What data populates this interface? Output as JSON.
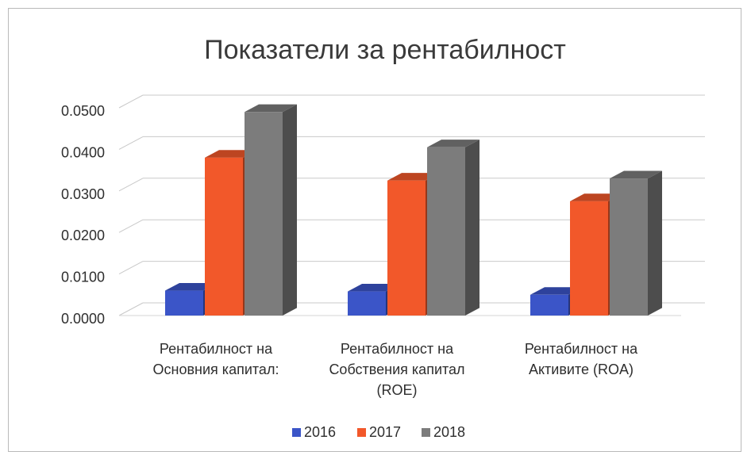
{
  "chart_data": {
    "type": "bar",
    "title": "Показатели за рентабилност",
    "xlabel": "",
    "ylabel": "",
    "ylim": [
      0,
      0.05
    ],
    "y_ticks": [
      "0.0000",
      "0.0100",
      "0.0200",
      "0.0300",
      "0.0400",
      "0.0500"
    ],
    "grid": true,
    "legend_position": "bottom",
    "categories": [
      [
        "Рентабилност на",
        "Основния капитал:"
      ],
      [
        "Рентабилност на",
        "Собствения капитал",
        "(ROE)"
      ],
      [
        "Рентабилност на",
        "Активите (ROA)"
      ]
    ],
    "series": [
      {
        "name": "2016",
        "color": "#3b55c8",
        "values": [
          0.006,
          0.0058,
          0.005
        ]
      },
      {
        "name": "2017",
        "color": "#f2582a",
        "values": [
          0.038,
          0.0325,
          0.0275
        ]
      },
      {
        "name": "2018",
        "color": "#7c7c7c",
        "values": [
          0.049,
          0.0405,
          0.033
        ]
      }
    ]
  }
}
